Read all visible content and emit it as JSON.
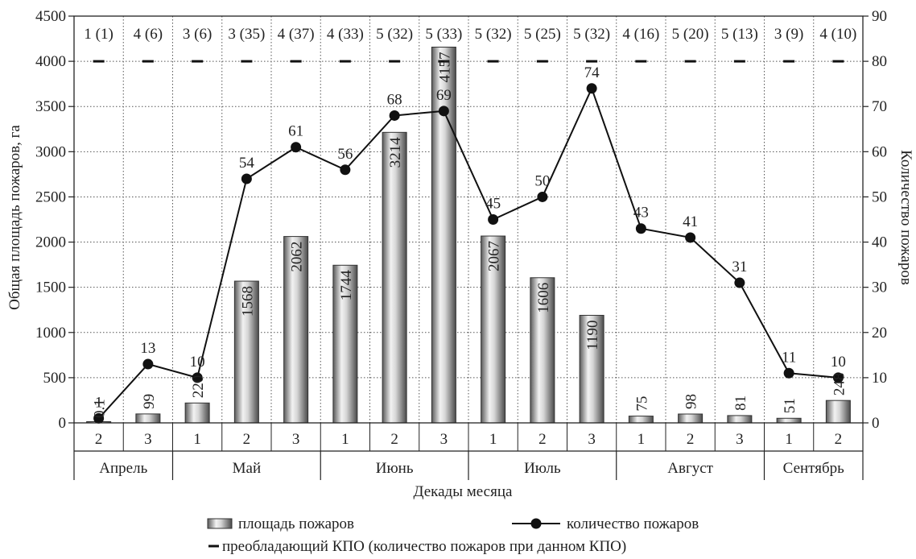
{
  "chart_data": {
    "type": "bar",
    "xlabel": "Декады месяца",
    "ylabel_left": "Общая площадь пожаров, га",
    "ylabel_right": "Количество пожаров",
    "ylim_left": [
      0,
      4500
    ],
    "ylim_right": [
      0,
      90
    ],
    "yticks_left": [
      "0",
      "500",
      "1000",
      "1500",
      "2000",
      "2500",
      "3000",
      "3500",
      "4000",
      "4500"
    ],
    "yticks_right": [
      "0",
      "10",
      "20",
      "30",
      "40",
      "50",
      "60",
      "70",
      "80",
      "90"
    ],
    "grid": true,
    "categories": [
      "2",
      "3",
      "1",
      "2",
      "3",
      "1",
      "2",
      "3",
      "1",
      "2",
      "3",
      "1",
      "2",
      "3",
      "1",
      "2"
    ],
    "months": [
      {
        "label": "Апрель",
        "span": 2
      },
      {
        "label": "Май",
        "span": 3
      },
      {
        "label": "Июнь",
        "span": 3
      },
      {
        "label": "Июль",
        "span": 3
      },
      {
        "label": "Август",
        "span": 3
      },
      {
        "label": "Сентябрь",
        "span": 2
      }
    ],
    "series": [
      {
        "name": "площадь пожаров",
        "axis": "left",
        "style": "bar",
        "values": [
          0.1,
          99,
          220,
          1568,
          2062,
          1744,
          3214,
          4157,
          2067,
          1606,
          1190,
          75,
          98,
          81,
          51,
          248
        ],
        "labels": [
          "0.1",
          "99",
          "220",
          "1568",
          "2062",
          "1744",
          "3214",
          "4157",
          "2067",
          "1606",
          "1190",
          "75",
          "98",
          "81",
          "51",
          "248"
        ]
      },
      {
        "name": "количество пожаров",
        "axis": "right",
        "style": "line",
        "values": [
          1,
          13,
          10,
          54,
          61,
          56,
          68,
          69,
          45,
          50,
          74,
          43,
          41,
          31,
          11,
          10
        ],
        "labels": [
          "1",
          "13",
          "10",
          "54",
          "61",
          "56",
          "68",
          "69",
          "45",
          "50",
          "74",
          "43",
          "41",
          "31",
          "11",
          "10"
        ]
      },
      {
        "name": "преобладающий КПО (количество пожаров при данном КПО)",
        "axis": "right",
        "style": "marker",
        "values": [
          80,
          80,
          80,
          80,
          80,
          80,
          80,
          80,
          80,
          80,
          80,
          80,
          80,
          80,
          80,
          80
        ]
      }
    ],
    "top_labels": [
      "1 (1)",
      "4 (6)",
      "3 (6)",
      "3 (35)",
      "4 (37)",
      "4 (33)",
      "5 (32)",
      "5 (33)",
      "5 (32)",
      "5 (25)",
      "5 (32)",
      "4 (16)",
      "5 (20)",
      "5 (13)",
      "3 (9)",
      "4 (10)"
    ],
    "legend": {
      "placement": "bottom",
      "items": [
        "площадь пожаров",
        "количество пожаров",
        "преобладающий КПО (количество пожаров при данном КПО)"
      ]
    }
  }
}
